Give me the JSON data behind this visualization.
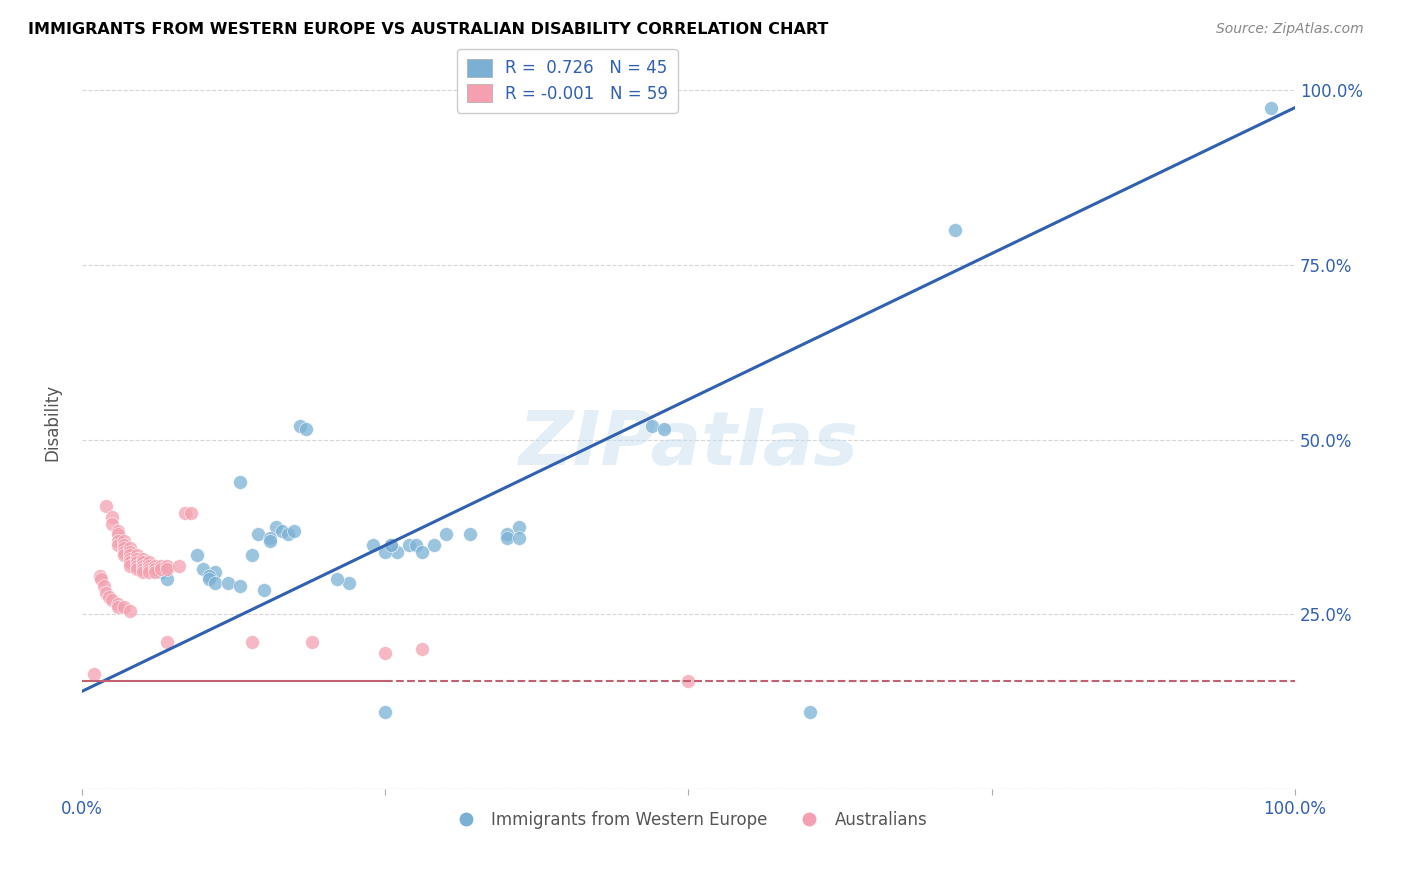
{
  "title": "IMMIGRANTS FROM WESTERN EUROPE VS AUSTRALIAN DISABILITY CORRELATION CHART",
  "source": "Source: ZipAtlas.com",
  "ylabel": "Disability",
  "right_yticks": [
    "100.0%",
    "75.0%",
    "50.0%",
    "25.0%"
  ],
  "right_ytick_vals": [
    100.0,
    75.0,
    50.0,
    25.0
  ],
  "legend_blue_label": "R =  0.726   N = 45",
  "legend_pink_label": "R = -0.001   N = 59",
  "legend_blue_bottom": "Immigrants from Western Europe",
  "legend_pink_bottom": "Australians",
  "blue_color": "#7ab0d4",
  "pink_color": "#f4a0b0",
  "blue_line_color": "#3060b0",
  "pink_line_color": "#c06070",
  "watermark": "ZIPatlas",
  "blue_dots": [
    [
      98.0,
      97.5
    ],
    [
      72.0,
      80.0
    ],
    [
      47.0,
      52.0
    ],
    [
      48.0,
      51.5
    ],
    [
      18.0,
      52.0
    ],
    [
      18.5,
      51.5
    ],
    [
      13.0,
      44.0
    ],
    [
      16.0,
      37.5
    ],
    [
      16.5,
      37.0
    ],
    [
      14.5,
      36.5
    ],
    [
      17.0,
      36.5
    ],
    [
      17.5,
      37.0
    ],
    [
      15.5,
      36.0
    ],
    [
      15.5,
      35.5
    ],
    [
      9.5,
      33.5
    ],
    [
      14.0,
      33.5
    ],
    [
      26.0,
      34.0
    ],
    [
      25.5,
      35.0
    ],
    [
      24.0,
      35.0
    ],
    [
      25.0,
      34.0
    ],
    [
      25.5,
      35.0
    ],
    [
      27.0,
      35.0
    ],
    [
      27.5,
      35.0
    ],
    [
      28.0,
      34.0
    ],
    [
      29.0,
      35.0
    ],
    [
      36.0,
      37.5
    ],
    [
      35.0,
      36.5
    ],
    [
      35.0,
      36.0
    ],
    [
      36.0,
      36.0
    ],
    [
      30.0,
      36.5
    ],
    [
      32.0,
      36.5
    ],
    [
      6.5,
      31.0
    ],
    [
      10.0,
      31.5
    ],
    [
      11.0,
      31.0
    ],
    [
      10.5,
      30.5
    ],
    [
      10.5,
      30.0
    ],
    [
      7.0,
      30.0
    ],
    [
      11.0,
      29.5
    ],
    [
      12.0,
      29.5
    ],
    [
      13.0,
      29.0
    ],
    [
      15.0,
      28.5
    ],
    [
      22.0,
      29.5
    ],
    [
      21.0,
      30.0
    ],
    [
      60.0,
      11.0
    ],
    [
      25.0,
      11.0
    ]
  ],
  "pink_dots": [
    [
      2.0,
      40.5
    ],
    [
      2.5,
      39.0
    ],
    [
      2.5,
      38.0
    ],
    [
      3.0,
      37.0
    ],
    [
      3.0,
      36.5
    ],
    [
      3.0,
      35.5
    ],
    [
      3.0,
      35.0
    ],
    [
      3.5,
      35.5
    ],
    [
      3.5,
      35.0
    ],
    [
      3.5,
      34.5
    ],
    [
      3.5,
      34.0
    ],
    [
      3.5,
      33.5
    ],
    [
      4.0,
      34.5
    ],
    [
      4.0,
      34.0
    ],
    [
      4.0,
      33.5
    ],
    [
      4.0,
      33.0
    ],
    [
      4.0,
      32.5
    ],
    [
      4.0,
      32.0
    ],
    [
      4.5,
      33.5
    ],
    [
      4.5,
      33.0
    ],
    [
      4.5,
      32.5
    ],
    [
      4.5,
      32.0
    ],
    [
      4.5,
      31.5
    ],
    [
      5.0,
      33.0
    ],
    [
      5.0,
      32.5
    ],
    [
      5.0,
      32.0
    ],
    [
      5.0,
      31.5
    ],
    [
      5.0,
      31.0
    ],
    [
      5.5,
      32.5
    ],
    [
      5.5,
      32.0
    ],
    [
      5.5,
      31.5
    ],
    [
      5.5,
      31.0
    ],
    [
      6.0,
      32.0
    ],
    [
      6.0,
      31.5
    ],
    [
      6.0,
      31.0
    ],
    [
      6.5,
      32.0
    ],
    [
      6.5,
      31.5
    ],
    [
      7.0,
      32.0
    ],
    [
      7.0,
      31.5
    ],
    [
      8.0,
      32.0
    ],
    [
      8.5,
      39.5
    ],
    [
      9.0,
      39.5
    ],
    [
      7.0,
      21.0
    ],
    [
      14.0,
      21.0
    ],
    [
      19.0,
      21.0
    ],
    [
      25.0,
      19.5
    ],
    [
      28.0,
      20.0
    ],
    [
      1.0,
      16.5
    ],
    [
      50.0,
      15.5
    ],
    [
      1.5,
      30.5
    ],
    [
      1.6,
      30.0
    ],
    [
      1.8,
      29.0
    ],
    [
      2.0,
      28.0
    ],
    [
      2.2,
      27.5
    ],
    [
      2.5,
      27.0
    ],
    [
      3.0,
      26.5
    ],
    [
      3.0,
      26.0
    ],
    [
      3.5,
      26.0
    ],
    [
      4.0,
      25.5
    ]
  ],
  "blue_line": {
    "x0": 0.0,
    "x1": 100.0,
    "y0": 14.0,
    "y1": 97.5
  },
  "pink_line": {
    "x0": 0.0,
    "x1": 100.0,
    "y0": 15.5,
    "y1": 15.5
  },
  "xlim": [
    0.0,
    100.0
  ],
  "ylim": [
    0.0,
    105.0
  ],
  "xgrid_ticks": [
    25.0,
    50.0,
    75.0
  ],
  "ygrid_ticks": [
    25.0,
    50.0,
    75.0,
    100.0
  ]
}
